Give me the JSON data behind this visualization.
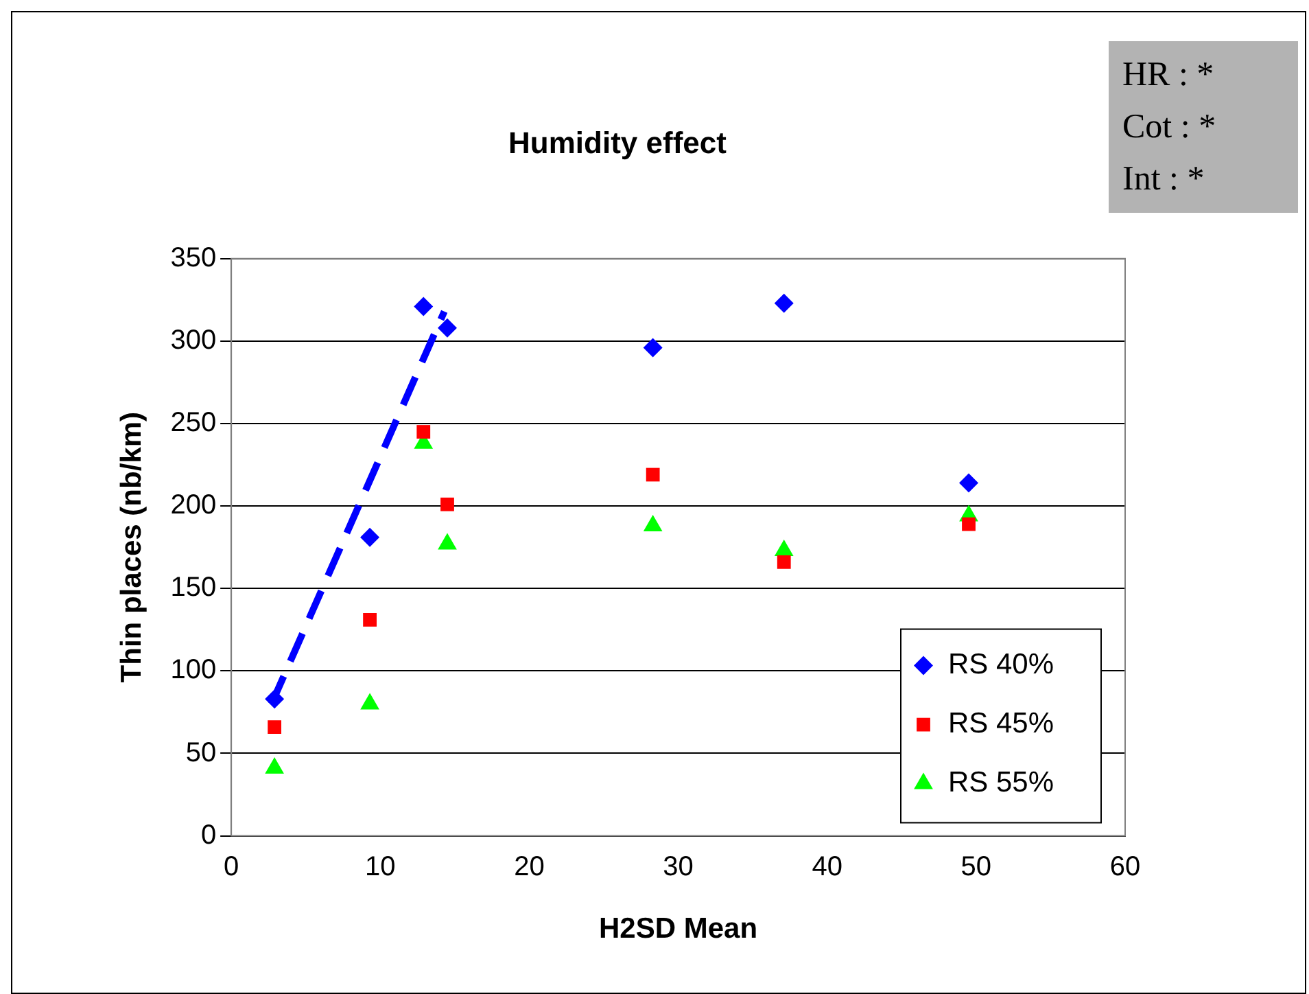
{
  "chart_data": {
    "type": "scatter",
    "title": "Humidity effect",
    "xlabel": "H2SD Mean",
    "ylabel": "Thin places (nb/km)",
    "annotations": [
      "HR : *",
      "Cot : *",
      "Int : *"
    ],
    "xlim": [
      0,
      60
    ],
    "xticks": [
      0,
      10,
      20,
      30,
      40,
      50,
      60
    ],
    "ylim": [
      0,
      350
    ],
    "yticks": [
      0,
      50,
      100,
      150,
      200,
      250,
      300,
      350
    ],
    "grid": "y",
    "legend": "bottom right",
    "series": [
      {
        "name": "RS 40%",
        "color": "#0000ff",
        "marker": "diamond",
        "x": [
          2.9,
          9.3,
          12.9,
          14.5,
          28.3,
          37.1,
          49.5
        ],
        "values": [
          83,
          181,
          321,
          308,
          296,
          323,
          214
        ]
      },
      {
        "name": "RS 45%",
        "color": "#ff0000",
        "marker": "square",
        "x": [
          2.9,
          9.3,
          12.9,
          14.5,
          28.3,
          37.1,
          49.5
        ],
        "values": [
          66,
          131,
          245,
          201,
          219,
          166,
          189
        ]
      },
      {
        "name": "RS 55%",
        "color": "#00ff00",
        "marker": "triangle",
        "x": [
          2.9,
          9.3,
          12.9,
          14.5,
          28.3,
          37.1,
          49.5
        ],
        "values": [
          41,
          80,
          238,
          177,
          188,
          173,
          194
        ]
      },
      {
        "type": "line",
        "color": "#0000ff",
        "marker": "none",
        "line_style": "dashed",
        "x": [
          2.7,
          14.3
        ],
        "values": [
          80,
          318
        ]
      }
    ]
  }
}
